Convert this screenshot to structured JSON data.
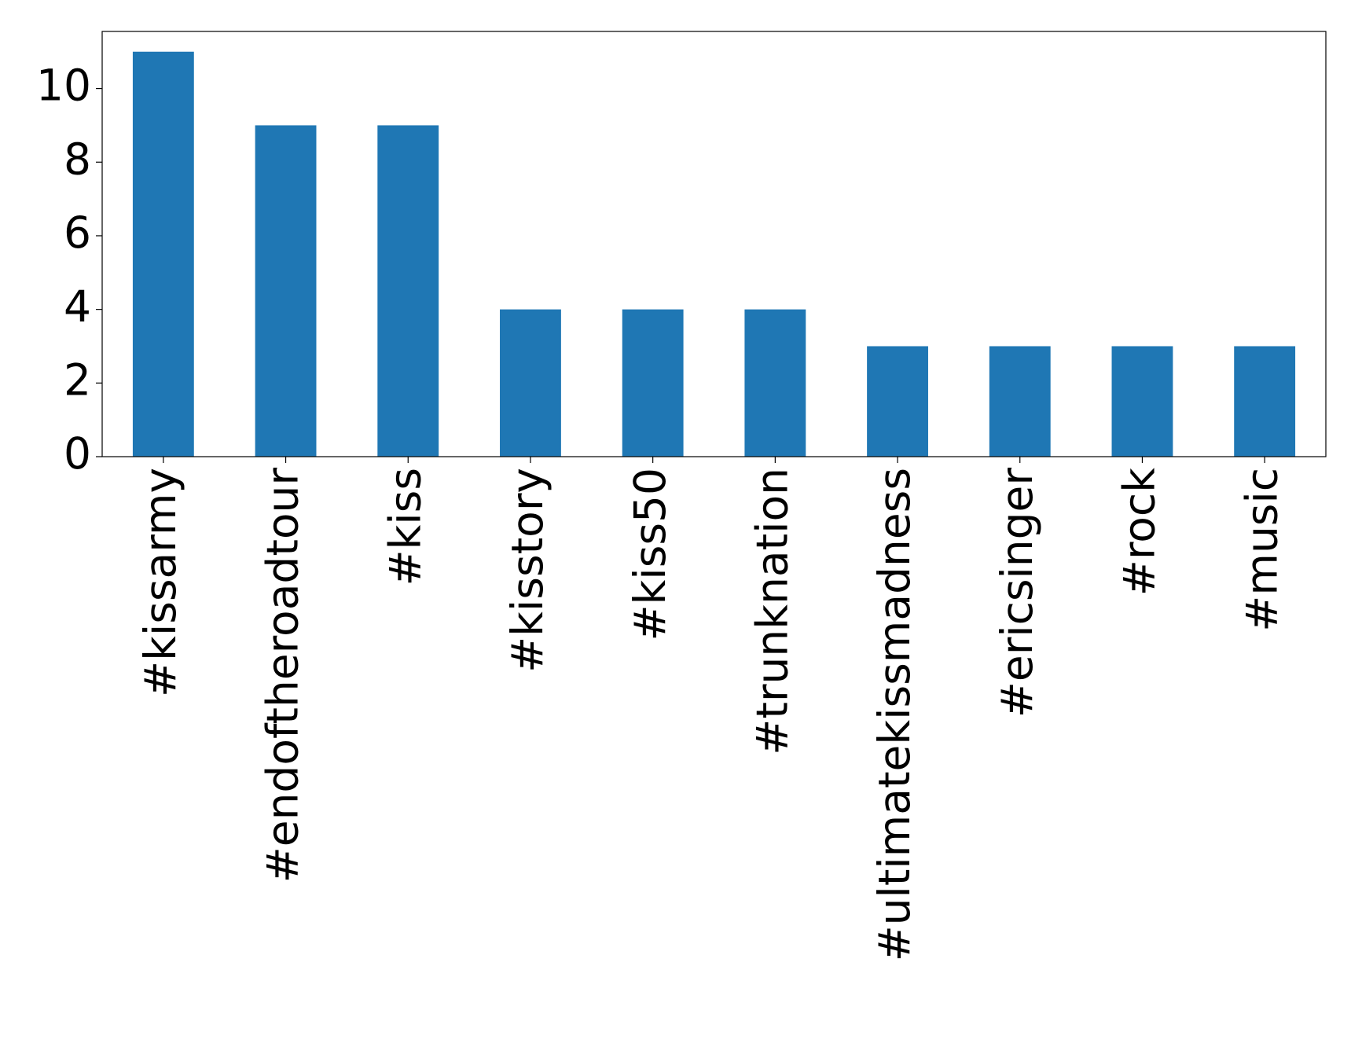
{
  "chart_data": {
    "type": "bar",
    "categories": [
      "#kissarmy",
      "#endoftheroadtour",
      "#kiss",
      "#kisstory",
      "#kiss50",
      "#trunknation",
      "#ultimatekissmadness",
      "#ericsinger",
      "#rock",
      "#music"
    ],
    "values": [
      11,
      9,
      9,
      4,
      4,
      4,
      3,
      3,
      3,
      3
    ],
    "color": "#1f77b4",
    "ylim": [
      0,
      11.55
    ],
    "yticks": [
      0,
      2,
      4,
      6,
      8,
      10
    ],
    "grid": false
  }
}
